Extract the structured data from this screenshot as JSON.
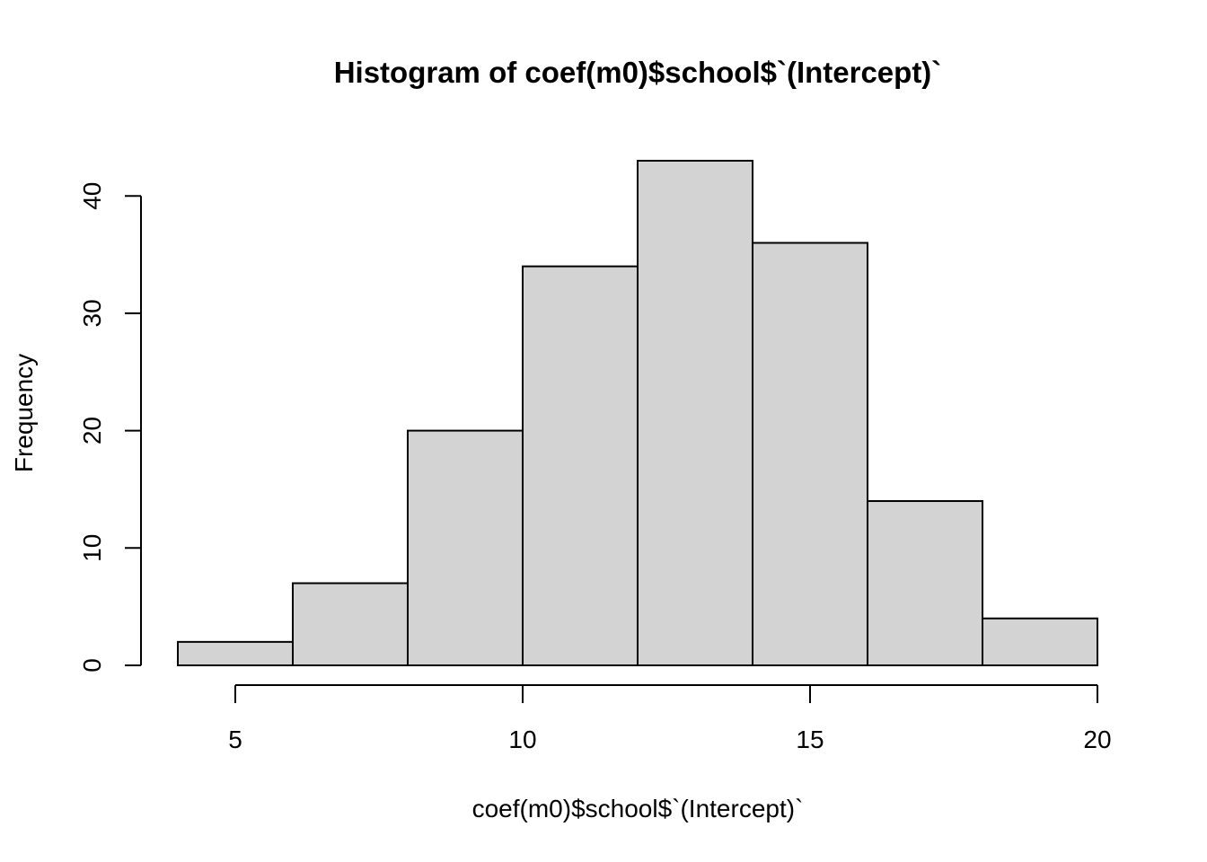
{
  "chart_data": {
    "type": "bar",
    "title": "Histogram of coef(m0)$school$`(Intercept)`",
    "xlabel": "coef(m0)$school$`(Intercept)`",
    "ylabel": "Frequency",
    "bin_edges": [
      4,
      6,
      8,
      10,
      12,
      14,
      16,
      18,
      20
    ],
    "values": [
      2,
      7,
      20,
      34,
      43,
      36,
      14,
      4
    ],
    "xlim": [
      4,
      20
    ],
    "ylim": [
      0,
      43
    ],
    "x_ticks": [
      5,
      10,
      15,
      20
    ],
    "x_tick_labels": [
      "5",
      "10",
      "15",
      "20"
    ],
    "y_ticks": [
      0,
      10,
      20,
      30,
      40
    ],
    "y_tick_labels": [
      "0",
      "10",
      "20",
      "30",
      "40"
    ],
    "bar_color": "#d3d3d3",
    "grid": false
  }
}
